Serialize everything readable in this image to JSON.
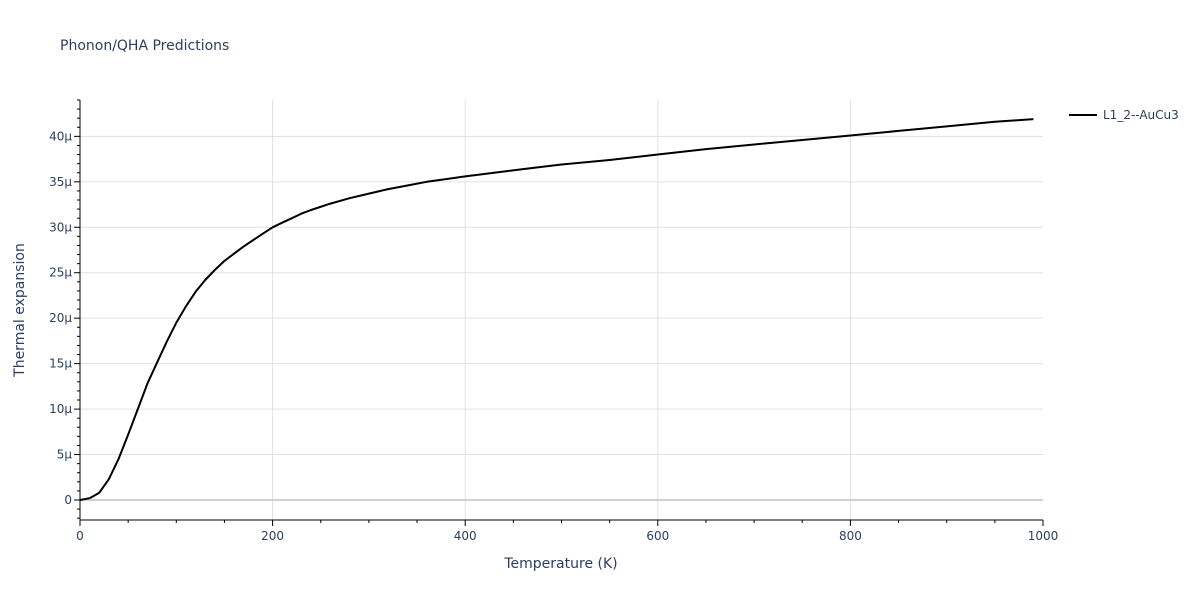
{
  "chart_data": {
    "type": "line",
    "title": "Phonon/QHA Predictions",
    "xlabel": "Temperature (K)",
    "ylabel": "Thermal expansion",
    "xlim": [
      0,
      1000
    ],
    "ylim": [
      -2.2e-06,
      4.4e-05
    ],
    "xticks": [
      0,
      200,
      400,
      600,
      800,
      1000
    ],
    "xtick_labels": [
      "0",
      "200",
      "400",
      "600",
      "800",
      "1000"
    ],
    "yticks": [
      0,
      5e-06,
      1e-05,
      1.5e-05,
      2e-05,
      2.5e-05,
      3e-05,
      3.5e-05,
      4e-05
    ],
    "ytick_labels": [
      "0",
      "5μ",
      "10μ",
      "15μ",
      "20μ",
      "25μ",
      "30μ",
      "35μ",
      "40μ"
    ],
    "grid": true,
    "legend_position": "top-right",
    "series": [
      {
        "name": "L1_2--AuCu3",
        "color": "#000000",
        "x": [
          0,
          10,
          20,
          30,
          40,
          50,
          60,
          70,
          80,
          90,
          100,
          110,
          120,
          130,
          140,
          150,
          160,
          170,
          180,
          190,
          200,
          210,
          220,
          230,
          240,
          260,
          280,
          300,
          320,
          340,
          360,
          380,
          400,
          430,
          460,
          500,
          550,
          600,
          650,
          700,
          750,
          800,
          850,
          900,
          950,
          990
        ],
        "y": [
          0,
          2e-07,
          8e-07,
          2.3e-06,
          4.5e-06,
          7.2e-06,
          1e-05,
          1.28e-05,
          1.51e-05,
          1.74e-05,
          1.95e-05,
          2.13e-05,
          2.29e-05,
          2.42e-05,
          2.53e-05,
          2.63e-05,
          2.71e-05,
          2.79e-05,
          2.86e-05,
          2.93e-05,
          3e-05,
          3.05e-05,
          3.1e-05,
          3.15e-05,
          3.19e-05,
          3.26e-05,
          3.32e-05,
          3.37e-05,
          3.42e-05,
          3.46e-05,
          3.5e-05,
          3.53e-05,
          3.56e-05,
          3.6e-05,
          3.64e-05,
          3.69e-05,
          3.74e-05,
          3.8e-05,
          3.86e-05,
          3.91e-05,
          3.96e-05,
          4.01e-05,
          4.06e-05,
          4.11e-05,
          4.16e-05,
          4.19e-05
        ]
      }
    ]
  }
}
